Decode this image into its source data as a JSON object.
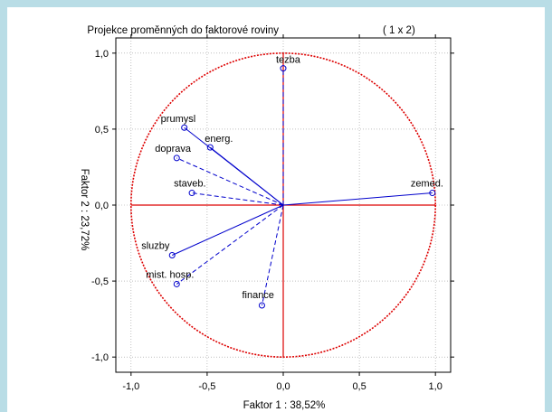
{
  "chart_data": {
    "type": "scatter",
    "title": "Projekce proměnných do faktorové roviny",
    "subtitle": "( 1 x  2)",
    "xlabel": "Faktor 1 : 38,52%",
    "ylabel": "Faktor 2 : 23,72%",
    "xlim": [
      -1.1,
      1.1
    ],
    "ylim": [
      -1.1,
      1.1
    ],
    "x_ticks": [
      "-1,0",
      "-0,5",
      "0,0",
      "0,5",
      "1,0"
    ],
    "y_ticks": [
      "1,0",
      "0,5",
      "0,0",
      "-0,5",
      "-1,0"
    ],
    "grid": true,
    "unit_circle": true,
    "points": [
      {
        "label": "tezba",
        "x": 0.0,
        "y": 0.9,
        "line": "dashed"
      },
      {
        "label": "prumysl",
        "x": -0.65,
        "y": 0.51,
        "line": "solid"
      },
      {
        "label": "energ.",
        "x": -0.48,
        "y": 0.38,
        "line": "solid"
      },
      {
        "label": "doprava",
        "x": -0.7,
        "y": 0.31,
        "line": "dashed"
      },
      {
        "label": "staveb.",
        "x": -0.6,
        "y": 0.08,
        "line": "dashed"
      },
      {
        "label": "zemed.",
        "x": 0.98,
        "y": 0.08,
        "line": "solid"
      },
      {
        "label": "sluzby",
        "x": -0.73,
        "y": -0.33,
        "line": "solid"
      },
      {
        "label": "mist. hosp.",
        "x": -0.7,
        "y": -0.52,
        "line": "dashed"
      },
      {
        "label": "finance",
        "x": -0.14,
        "y": -0.66,
        "line": "dashed"
      }
    ],
    "colors": {
      "vectors": "#0000cc",
      "circle": "#dd0000",
      "axes": "#dd0000",
      "grid": "#999999"
    }
  }
}
